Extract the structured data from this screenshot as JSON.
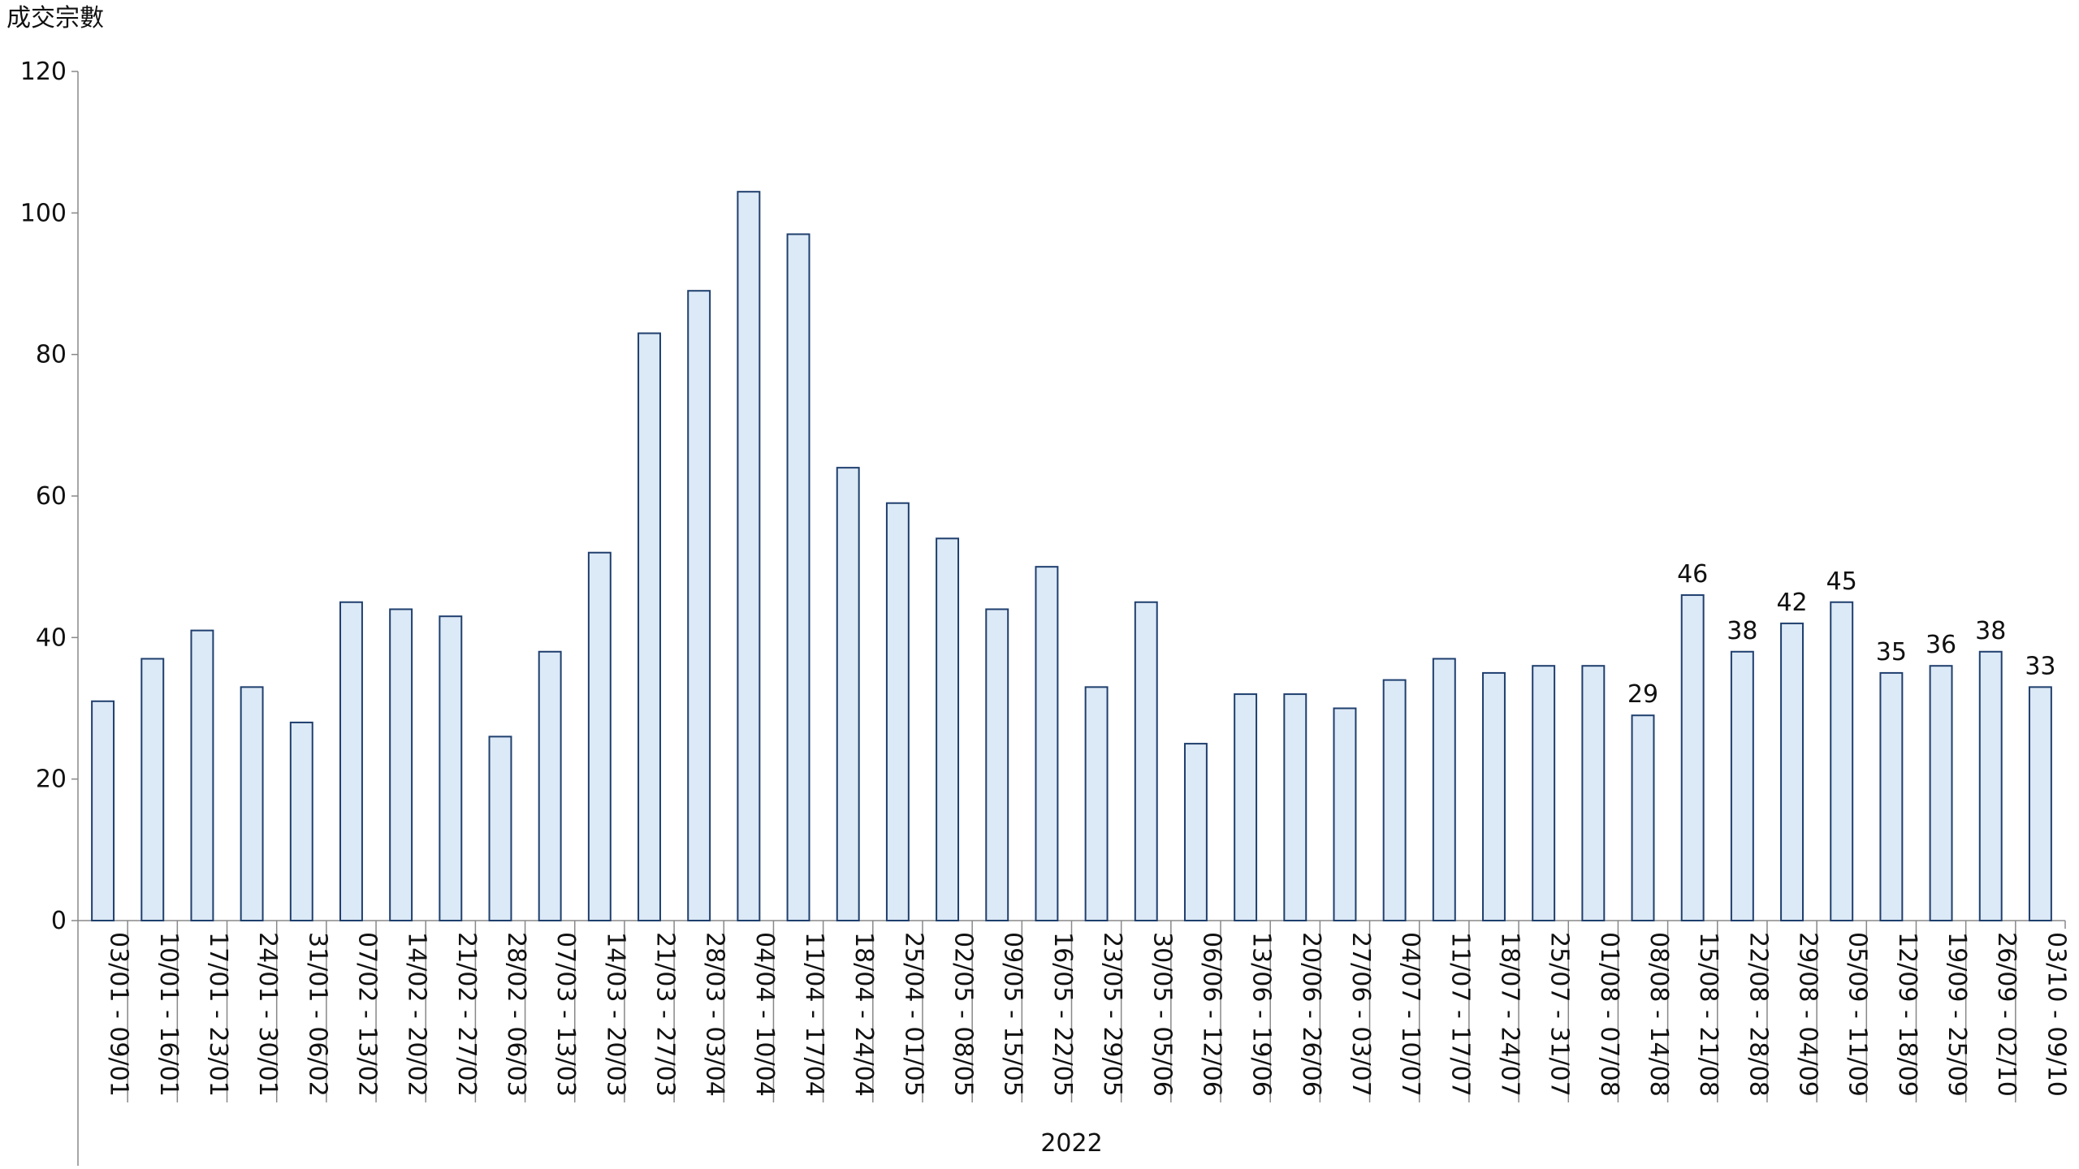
{
  "chart_data": {
    "type": "bar",
    "y_label": "成交宗數",
    "group_label": "2022",
    "categories": [
      "03/01 - 09/01",
      "10/01 - 16/01",
      "17/01 - 23/01",
      "24/01 - 30/01",
      "31/01 - 06/02",
      "07/02 - 13/02",
      "14/02 - 20/02",
      "21/02 - 27/02",
      "28/02 - 06/03",
      "07/03 - 13/03",
      "14/03 - 20/03",
      "21/03 - 27/03",
      "28/03 - 03/04",
      "04/04 - 10/04",
      "11/04 - 17/04",
      "18/04 - 24/04",
      "25/04 - 01/05",
      "02/05 - 08/05",
      "09/05 - 15/05",
      "16/05 - 22/05",
      "23/05 - 29/05",
      "30/05 - 05/06",
      "06/06 - 12/06",
      "13/06 - 19/06",
      "20/06 - 26/06",
      "27/06 - 03/07",
      "04/07 - 10/07",
      "11/07 - 17/07",
      "18/07 - 24/07",
      "25/07 - 31/07",
      "01/08 - 07/08",
      "08/08 - 14/08",
      "15/08 - 21/08",
      "22/08 - 28/08",
      "29/08 - 04/09",
      "05/09 - 11/09",
      "12/09 - 18/09",
      "19/09 - 25/09",
      "26/09 - 02/10",
      "03/10 - 09/10"
    ],
    "values": [
      31,
      37,
      41,
      33,
      28,
      45,
      44,
      43,
      26,
      38,
      52,
      83,
      89,
      103,
      97,
      64,
      59,
      54,
      44,
      50,
      33,
      45,
      25,
      32,
      32,
      30,
      34,
      37,
      35,
      36,
      36,
      29,
      46,
      38,
      42,
      45,
      35,
      36,
      38,
      33
    ],
    "value_labels": [
      null,
      null,
      null,
      null,
      null,
      null,
      null,
      null,
      null,
      null,
      null,
      null,
      null,
      null,
      null,
      null,
      null,
      null,
      null,
      null,
      null,
      null,
      null,
      null,
      null,
      null,
      null,
      null,
      null,
      null,
      null,
      "29",
      "46",
      "38",
      "42",
      "45",
      "35",
      "36",
      "38",
      "33"
    ],
    "color": "#dce9f6",
    "edge_color": "#1f3f6e",
    "ylim": [
      0,
      120
    ],
    "yticks": [
      0,
      20,
      40,
      60,
      80,
      100,
      120
    ],
    "grid": false
  }
}
